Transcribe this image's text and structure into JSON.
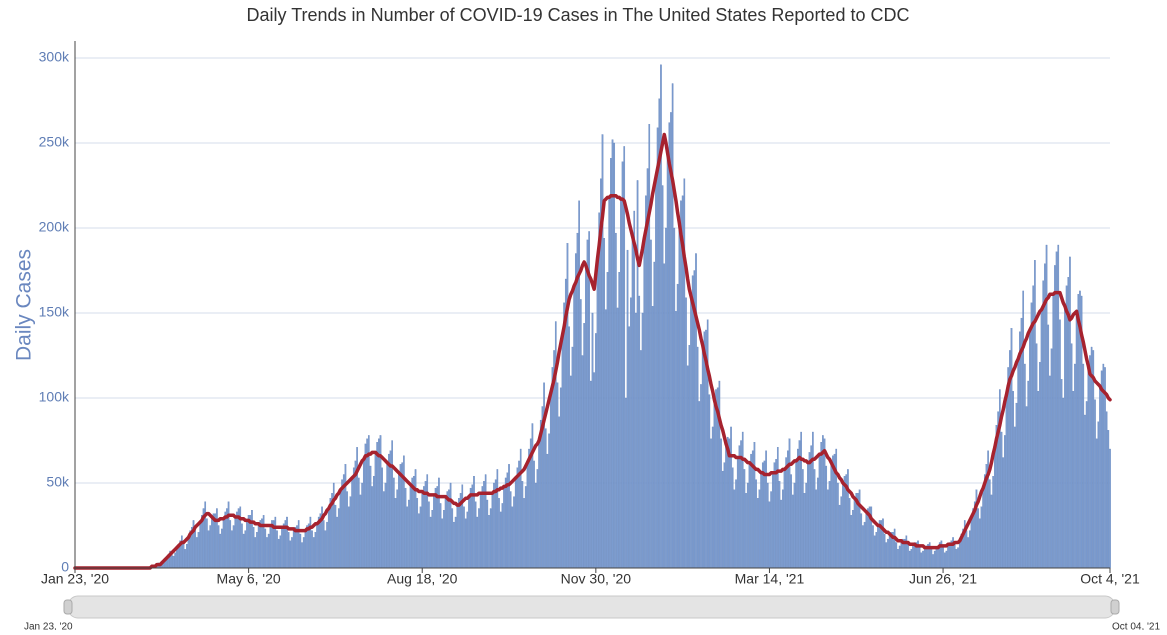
{
  "chart_data": {
    "type": "bar",
    "title": "Daily Trends in Number of COVID-19 Cases in The United States Reported to CDC",
    "y_label": "Daily Cases",
    "ylim": [
      0,
      310
    ],
    "yticks": [
      0,
      {
        "value": 50,
        "label": "50k"
      },
      {
        "value": 100,
        "label": "100k"
      },
      {
        "value": 150,
        "label": "150k"
      },
      {
        "value": 200,
        "label": "200k"
      },
      {
        "value": 250,
        "label": "250k"
      },
      {
        "value": 300,
        "label": "300k"
      }
    ],
    "xlim": [
      0,
      620
    ],
    "xticks": [
      {
        "value": 0,
        "label": "Jan 23, '20"
      },
      {
        "value": 104,
        "label": "May 6, '20"
      },
      {
        "value": 208,
        "label": "Aug 18, '20"
      },
      {
        "value": 312,
        "label": "Nov 30, '20"
      },
      {
        "value": 416,
        "label": "Mar 14, '21"
      },
      {
        "value": 520,
        "label": "Jun 26, '21"
      },
      {
        "value": 620,
        "label": "Oct 4, '21"
      }
    ],
    "grid": true,
    "series": [
      {
        "type": "bar",
        "color": "#7c9cd0",
        "values": [
          0,
          0,
          0,
          0,
          0,
          0,
          0,
          0,
          0,
          0,
          0,
          0,
          0,
          0,
          0,
          0,
          0,
          0,
          0,
          0,
          0,
          0,
          0,
          0,
          0,
          0,
          0,
          0,
          0,
          0,
          0,
          0,
          0,
          0,
          0,
          0,
          0,
          0,
          0,
          0,
          0,
          0,
          0,
          0,
          0,
          0,
          1,
          1,
          1,
          2,
          3,
          2,
          2,
          3,
          5,
          7,
          8,
          10,
          8,
          7,
          9,
          12,
          14,
          16,
          19,
          14,
          11,
          14,
          18,
          22,
          24,
          28,
          22,
          18,
          21,
          27,
          31,
          35,
          39,
          29,
          22,
          25,
          30,
          32,
          32,
          35,
          25,
          20,
          23,
          29,
          33,
          35,
          39,
          28,
          22,
          25,
          30,
          33,
          35,
          36,
          26,
          20,
          22,
          28,
          31,
          31,
          34,
          24,
          18,
          21,
          26,
          28,
          29,
          31,
          23,
          18,
          20,
          25,
          28,
          28,
          30,
          22,
          17,
          19,
          24,
          26,
          28,
          30,
          21,
          16,
          18,
          23,
          24,
          25,
          28,
          20,
          15,
          18,
          22,
          25,
          26,
          30,
          22,
          18,
          21,
          26,
          30,
          32,
          36,
          28,
          22,
          27,
          35,
          41,
          44,
          50,
          37,
          30,
          35,
          46,
          52,
          55,
          61,
          45,
          36,
          42,
          53,
          59,
          63,
          71,
          53,
          43,
          50,
          64,
          73,
          76,
          78,
          60,
          48,
          54,
          68,
          74,
          76,
          78,
          59,
          45,
          50,
          62,
          67,
          69,
          75,
          53,
          41,
          46,
          56,
          61,
          62,
          66,
          47,
          36,
          40,
          49,
          53,
          54,
          58,
          41,
          32,
          36,
          45,
          48,
          51,
          55,
          39,
          30,
          34,
          43,
          47,
          48,
          53,
          38,
          29,
          34,
          42,
          45,
          46,
          50,
          35,
          27,
          30,
          37,
          41,
          44,
          49,
          36,
          29,
          33,
          42,
          47,
          49,
          54,
          39,
          30,
          35,
          44,
          48,
          51,
          55,
          40,
          31,
          35,
          44,
          50,
          52,
          58,
          41,
          33,
          38,
          48,
          53,
          56,
          61,
          45,
          36,
          42,
          53,
          59,
          63,
          70,
          51,
          41,
          48,
          62,
          70,
          76,
          85,
          63,
          50,
          58,
          75,
          87,
          95,
          109,
          82,
          67,
          79,
          103,
          118,
          128,
          145,
          109,
          89,
          106,
          137,
          156,
          170,
          191,
          142,
          113,
          130,
          166,
          185,
          197,
          216,
          158,
          125,
          144,
          178,
          193,
          198,
          110,
          150,
          115,
          138,
          182,
          209,
          229,
          255,
          194,
          152,
          174,
          218,
          241,
          252,
          250,
          197,
          153,
          174,
          217,
          239,
          248,
          100,
          187,
          142,
          159,
          195,
          210,
          150,
          228,
          160,
          128,
          150,
          194,
          219,
          235,
          261,
          193,
          154,
          180,
          230,
          259,
          276,
          296,
          225,
          179,
          200,
          244,
          262,
          268,
          285,
          200,
          151,
          167,
          203,
          216,
          219,
          229,
          159,
          119,
          131,
          160,
          172,
          175,
          185,
          130,
          98,
          108,
          131,
          139,
          140,
          146,
          102,
          76,
          83,
          99,
          105,
          106,
          110,
          76,
          57,
          62,
          73,
          77,
          76,
          83,
          59,
          46,
          52,
          65,
          72,
          75,
          80,
          58,
          44,
          50,
          62,
          67,
          69,
          74,
          52,
          41,
          46,
          56,
          62,
          63,
          69,
          50,
          39,
          45,
          56,
          62,
          64,
          71,
          51,
          40,
          46,
          58,
          65,
          69,
          76,
          55,
          43,
          50,
          63,
          70,
          75,
          80,
          58,
          44,
          50,
          62,
          68,
          72,
          80,
          58,
          46,
          53,
          67,
          74,
          78,
          76,
          60,
          46,
          51,
          62,
          66,
          67,
          70,
          50,
          37,
          42,
          50,
          54,
          55,
          58,
          41,
          31,
          34,
          41,
          44,
          44,
          46,
          32,
          25,
          27,
          33,
          35,
          36,
          36,
          25,
          19,
          21,
          25,
          28,
          28,
          29,
          20,
          15,
          17,
          20,
          21,
          21,
          23,
          15,
          11,
          13,
          16,
          17,
          17,
          19,
          14,
          10,
          11,
          14,
          15,
          15,
          16,
          12,
          9,
          10,
          12,
          13,
          14,
          15,
          11,
          8,
          10,
          12,
          13,
          15,
          16,
          12,
          9,
          10,
          14,
          15,
          16,
          18,
          14,
          11,
          12,
          16,
          20,
          23,
          28,
          22,
          18,
          22,
          30,
          35,
          39,
          46,
          35,
          29,
          36,
          47,
          55,
          61,
          69,
          52,
          43,
          54,
          71,
          84,
          92,
          105,
          80,
          65,
          78,
          102,
          118,
          128,
          141,
          104,
          83,
          97,
          123,
          139,
          147,
          163,
          120,
          95,
          110,
          140,
          156,
          166,
          181,
          132,
          104,
          121,
          152,
          169,
          179,
          190,
          143,
          113,
          129,
          161,
          178,
          186,
          190,
          146,
          111,
          100,
          154,
          166,
          171,
          183,
          132,
          104,
          120,
          151,
          161,
          163,
          160,
          120,
          90,
          98,
          119,
          125,
          130,
          128,
          99,
          76,
          86,
          107,
          116,
          120,
          118,
          92,
          81,
          70
        ]
      },
      {
        "type": "line",
        "color": "#a6222e",
        "values": [
          0,
          0,
          0,
          0,
          0,
          0,
          0,
          0,
          0,
          0,
          0,
          0,
          0,
          0,
          0,
          0,
          0,
          0,
          0,
          0,
          0,
          0,
          0,
          0,
          0,
          0,
          0,
          0,
          0,
          0,
          0,
          0,
          0,
          0,
          0,
          0,
          0,
          0,
          0,
          0,
          0,
          0,
          0,
          0,
          0,
          0,
          1,
          1,
          1,
          2,
          2,
          2,
          3,
          4,
          5,
          6,
          7,
          8,
          9,
          10,
          11,
          12,
          13,
          14,
          15,
          15,
          16,
          17,
          18,
          20,
          21,
          22,
          24,
          25,
          26,
          27,
          28,
          30,
          31,
          32,
          32,
          31,
          30,
          29,
          28,
          28,
          28,
          29,
          29,
          29,
          30,
          30,
          31,
          31,
          31,
          31,
          30,
          30,
          30,
          29,
          29,
          29,
          28,
          28,
          28,
          27,
          27,
          27,
          26,
          26,
          26,
          25,
          25,
          25,
          25,
          25,
          25,
          25,
          25,
          24,
          24,
          24,
          24,
          24,
          24,
          24,
          24,
          24,
          23,
          23,
          23,
          23,
          22,
          22,
          22,
          22,
          22,
          22,
          22,
          23,
          23,
          24,
          24,
          25,
          26,
          26,
          27,
          28,
          29,
          31,
          32,
          34,
          35,
          37,
          38,
          40,
          41,
          43,
          44,
          46,
          47,
          48,
          49,
          50,
          51,
          52,
          53,
          54,
          55,
          57,
          59,
          61,
          63,
          64,
          66,
          66,
          67,
          67,
          68,
          68,
          68,
          67,
          66,
          66,
          65,
          64,
          63,
          62,
          61,
          60,
          60,
          59,
          58,
          57,
          56,
          55,
          54,
          53,
          52,
          51,
          50,
          49,
          48,
          47,
          46,
          46,
          45,
          45,
          45,
          44,
          44,
          44,
          43,
          43,
          43,
          43,
          43,
          42,
          42,
          42,
          42,
          42,
          42,
          41,
          40,
          40,
          39,
          38,
          38,
          37,
          37,
          38,
          39,
          40,
          41,
          41,
          42,
          43,
          43,
          43,
          43,
          43,
          44,
          44,
          44,
          44,
          44,
          44,
          44,
          44,
          44,
          45,
          45,
          46,
          46,
          47,
          47,
          48,
          48,
          49,
          49,
          50,
          51,
          52,
          53,
          54,
          55,
          56,
          57,
          58,
          60,
          62,
          64,
          66,
          68,
          70,
          72,
          73,
          75,
          79,
          83,
          87,
          91,
          95,
          99,
          103,
          107,
          111,
          116,
          121,
          127,
          132,
          137,
          142,
          148,
          153,
          158,
          161,
          163,
          166,
          168,
          171,
          173,
          175,
          178,
          180,
          178,
          175,
          172,
          170,
          167,
          164,
          173,
          182,
          190,
          199,
          207,
          216,
          217,
          218,
          218,
          219,
          219,
          219,
          219,
          218,
          218,
          217,
          217,
          216,
          212,
          208,
          203,
          199,
          195,
          191,
          187,
          182,
          178,
          183,
          188,
          194,
          199,
          204,
          209,
          214,
          220,
          225,
          230,
          235,
          240,
          245,
          250,
          255,
          250,
          244,
          238,
          233,
          228,
          222,
          216,
          209,
          203,
          196,
          190,
          183,
          177,
          170,
          164,
          160,
          156,
          152,
          148,
          144,
          140,
          135,
          131,
          126,
          122,
          117,
          113,
          108,
          104,
          99,
          95,
          92,
          88,
          84,
          81,
          77,
          73,
          70,
          66,
          66,
          66,
          66,
          65,
          65,
          65,
          65,
          64,
          64,
          63,
          62,
          62,
          61,
          60,
          59,
          58,
          58,
          57,
          56,
          56,
          55,
          55,
          55,
          55,
          56,
          56,
          56,
          56,
          57,
          57,
          57,
          58,
          58,
          59,
          60,
          61,
          61,
          62,
          63,
          63,
          64,
          65,
          64,
          64,
          63,
          63,
          62,
          62,
          63,
          64,
          64,
          65,
          66,
          67,
          67,
          68,
          69,
          67,
          65,
          64,
          62,
          60,
          58,
          56,
          55,
          53,
          52,
          50,
          49,
          48,
          46,
          45,
          44,
          42,
          41,
          40,
          38,
          37,
          36,
          35,
          34,
          33,
          32,
          31,
          29,
          28,
          27,
          26,
          25,
          25,
          24,
          23,
          22,
          21,
          21,
          20,
          19,
          18,
          18,
          17,
          16,
          16,
          16,
          15,
          15,
          15,
          15,
          14,
          14,
          14,
          14,
          13,
          13,
          13,
          13,
          13,
          12,
          12,
          12,
          12,
          12,
          12,
          12,
          12,
          12,
          13,
          13,
          13,
          13,
          13,
          14,
          14,
          14,
          14,
          15,
          15,
          15,
          16,
          18,
          20,
          22,
          24,
          26,
          28,
          30,
          32,
          34,
          37,
          39,
          42,
          45,
          47,
          50,
          53,
          55,
          58,
          62,
          67,
          71,
          76,
          80,
          84,
          89,
          93,
          98,
          102,
          107,
          111,
          113,
          116,
          118,
          121,
          123,
          126,
          128,
          130,
          133,
          135,
          138,
          140,
          142,
          144,
          145,
          147,
          149,
          151,
          152,
          154,
          156,
          158,
          159,
          161,
          161,
          161,
          162,
          162,
          162,
          162,
          159,
          156,
          154,
          151,
          149,
          146,
          147,
          149,
          150,
          151,
          146,
          142,
          137,
          133,
          128,
          123,
          119,
          114,
          113,
          112,
          110,
          109,
          108,
          107,
          105,
          104,
          103,
          102,
          100,
          99
        ]
      }
    ]
  },
  "range_slider": {
    "start_label": "Jan 23, '20",
    "end_label": "Oct 04, '21"
  }
}
